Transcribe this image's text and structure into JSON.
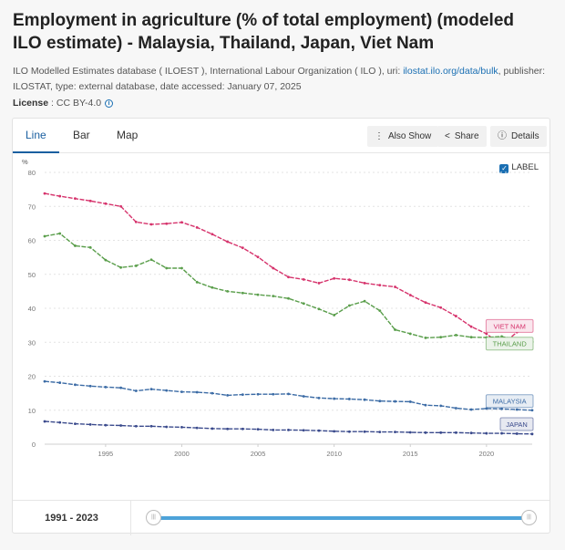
{
  "header": {
    "title": "Employment in agriculture (% of total employment) (modeled ILO estimate) - Malaysia, Thailand, Japan, Viet Nam",
    "source_prefix": "ILO Modelled Estimates database ( ILOEST ), International Labour Organization ( ILO ), uri: ",
    "source_link": "ilostat.ilo.org/data/bulk",
    "source_suffix": ", publisher: ILOSTAT, type: external database, date accessed: January 07, 2025",
    "license_label": "License",
    "license_value": " : CC BY-4.0"
  },
  "tabs": [
    {
      "label": "Line"
    },
    {
      "label": "Bar"
    },
    {
      "label": "Map"
    }
  ],
  "toolbar": {
    "also_show": "Also Show",
    "share": "Share",
    "details": "Details"
  },
  "label_toggle": "LABEL",
  "footer": {
    "range": "1991 - 2023"
  },
  "colors": {
    "viet_nam": "#d6336c",
    "thailand": "#5a9e4b",
    "malaysia": "#3b6ba5",
    "japan": "#3a4a8c"
  },
  "chart_data": {
    "type": "line",
    "ylabel": "%",
    "ylim": [
      0,
      80
    ],
    "yticks": [
      0,
      10,
      20,
      30,
      40,
      50,
      60,
      70,
      80
    ],
    "xlim": [
      1991,
      2023
    ],
    "xticks": [
      1995,
      2000,
      2005,
      2010,
      2015,
      2020
    ],
    "x": [
      1991,
      1992,
      1993,
      1994,
      1995,
      1996,
      1997,
      1998,
      1999,
      2000,
      2001,
      2002,
      2003,
      2004,
      2005,
      2006,
      2007,
      2008,
      2009,
      2010,
      2011,
      2012,
      2013,
      2014,
      2015,
      2016,
      2017,
      2018,
      2019,
      2020,
      2021,
      2022,
      2023
    ],
    "series": [
      {
        "name": "VIET NAM",
        "color": "#d6336c",
        "values": [
          73.8,
          73.0,
          72.3,
          71.6,
          70.8,
          70.0,
          65.4,
          64.7,
          64.9,
          65.3,
          63.8,
          61.8,
          59.6,
          57.8,
          55.1,
          51.8,
          49.2,
          48.5,
          47.4,
          48.8,
          48.4,
          47.4,
          46.8,
          46.3,
          43.9,
          41.7,
          40.2,
          37.7,
          34.6,
          32.5,
          29.1,
          33.0,
          null
        ]
      },
      {
        "name": "THAILAND",
        "color": "#5a9e4b",
        "values": [
          61.2,
          62.0,
          58.4,
          57.9,
          54.2,
          52.0,
          52.5,
          54.3,
          51.8,
          51.8,
          47.7,
          46.1,
          45.0,
          44.5,
          44.0,
          43.6,
          42.9,
          41.4,
          39.8,
          38.0,
          40.8,
          42.1,
          39.3,
          33.7,
          32.5,
          31.3,
          31.5,
          32.1,
          31.5,
          31.4,
          31.7,
          30.6,
          30.1
        ]
      },
      {
        "name": "MALAYSIA",
        "color": "#3b6ba5",
        "values": [
          18.5,
          18.1,
          17.5,
          17.1,
          16.8,
          16.6,
          15.7,
          16.2,
          15.8,
          15.4,
          15.3,
          15.0,
          14.4,
          14.6,
          14.7,
          14.7,
          14.8,
          14.1,
          13.6,
          13.4,
          13.3,
          13.1,
          12.7,
          12.6,
          12.5,
          11.5,
          11.3,
          10.6,
          10.2,
          10.5,
          10.4,
          10.2,
          10.0
        ]
      },
      {
        "name": "JAPAN",
        "color": "#3a4a8c",
        "values": [
          6.7,
          6.4,
          6.0,
          5.8,
          5.6,
          5.5,
          5.3,
          5.3,
          5.1,
          5.0,
          4.8,
          4.6,
          4.5,
          4.5,
          4.4,
          4.2,
          4.2,
          4.1,
          4.0,
          3.8,
          3.7,
          3.7,
          3.6,
          3.6,
          3.5,
          3.4,
          3.4,
          3.4,
          3.3,
          3.2,
          3.2,
          3.1,
          3.0
        ]
      }
    ],
    "labels": [
      {
        "name": "VIET NAM",
        "value": 34.8
      },
      {
        "name": "THAILAND",
        "value": 29.6
      },
      {
        "name": "MALAYSIA",
        "value": 12.7
      },
      {
        "name": "JAPAN",
        "value": 5.9
      }
    ]
  }
}
